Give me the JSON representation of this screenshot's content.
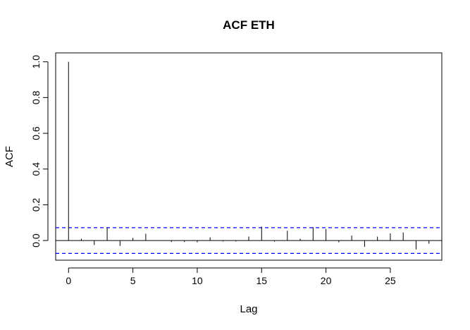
{
  "chart_data": {
    "type": "bar",
    "title": "ACF ETH",
    "xlabel": "Lag",
    "ylabel": "ACF",
    "xlim": [
      -1,
      29
    ],
    "ylim": [
      -0.11,
      1.05
    ],
    "x_ticks": [
      0,
      5,
      10,
      15,
      20,
      25
    ],
    "y_ticks": [
      0.0,
      0.2,
      0.4,
      0.6,
      0.8,
      1.0
    ],
    "x_tick_labels": [
      "0",
      "5",
      "10",
      "15",
      "20",
      "25"
    ],
    "y_tick_labels": [
      "0.0",
      "0.2",
      "0.4",
      "0.6",
      "0.8",
      "1.0"
    ],
    "confidence_bounds": [
      0.072,
      -0.072
    ],
    "confidence_color": "#0000ff",
    "lags": [
      0,
      1,
      2,
      3,
      4,
      5,
      6,
      7,
      8,
      9,
      10,
      11,
      12,
      13,
      14,
      15,
      16,
      17,
      18,
      19,
      20,
      21,
      22,
      23,
      24,
      25,
      26,
      27,
      28
    ],
    "acf": [
      1.0,
      0.01,
      -0.025,
      0.072,
      -0.03,
      0.015,
      0.038,
      0.002,
      -0.008,
      -0.008,
      -0.01,
      0.018,
      -0.005,
      -0.005,
      0.022,
      0.078,
      -0.006,
      0.055,
      0.01,
      0.075,
      0.065,
      -0.01,
      0.028,
      -0.035,
      0.022,
      0.04,
      0.045,
      -0.05,
      -0.018
    ],
    "grid": false,
    "legend": "none"
  }
}
